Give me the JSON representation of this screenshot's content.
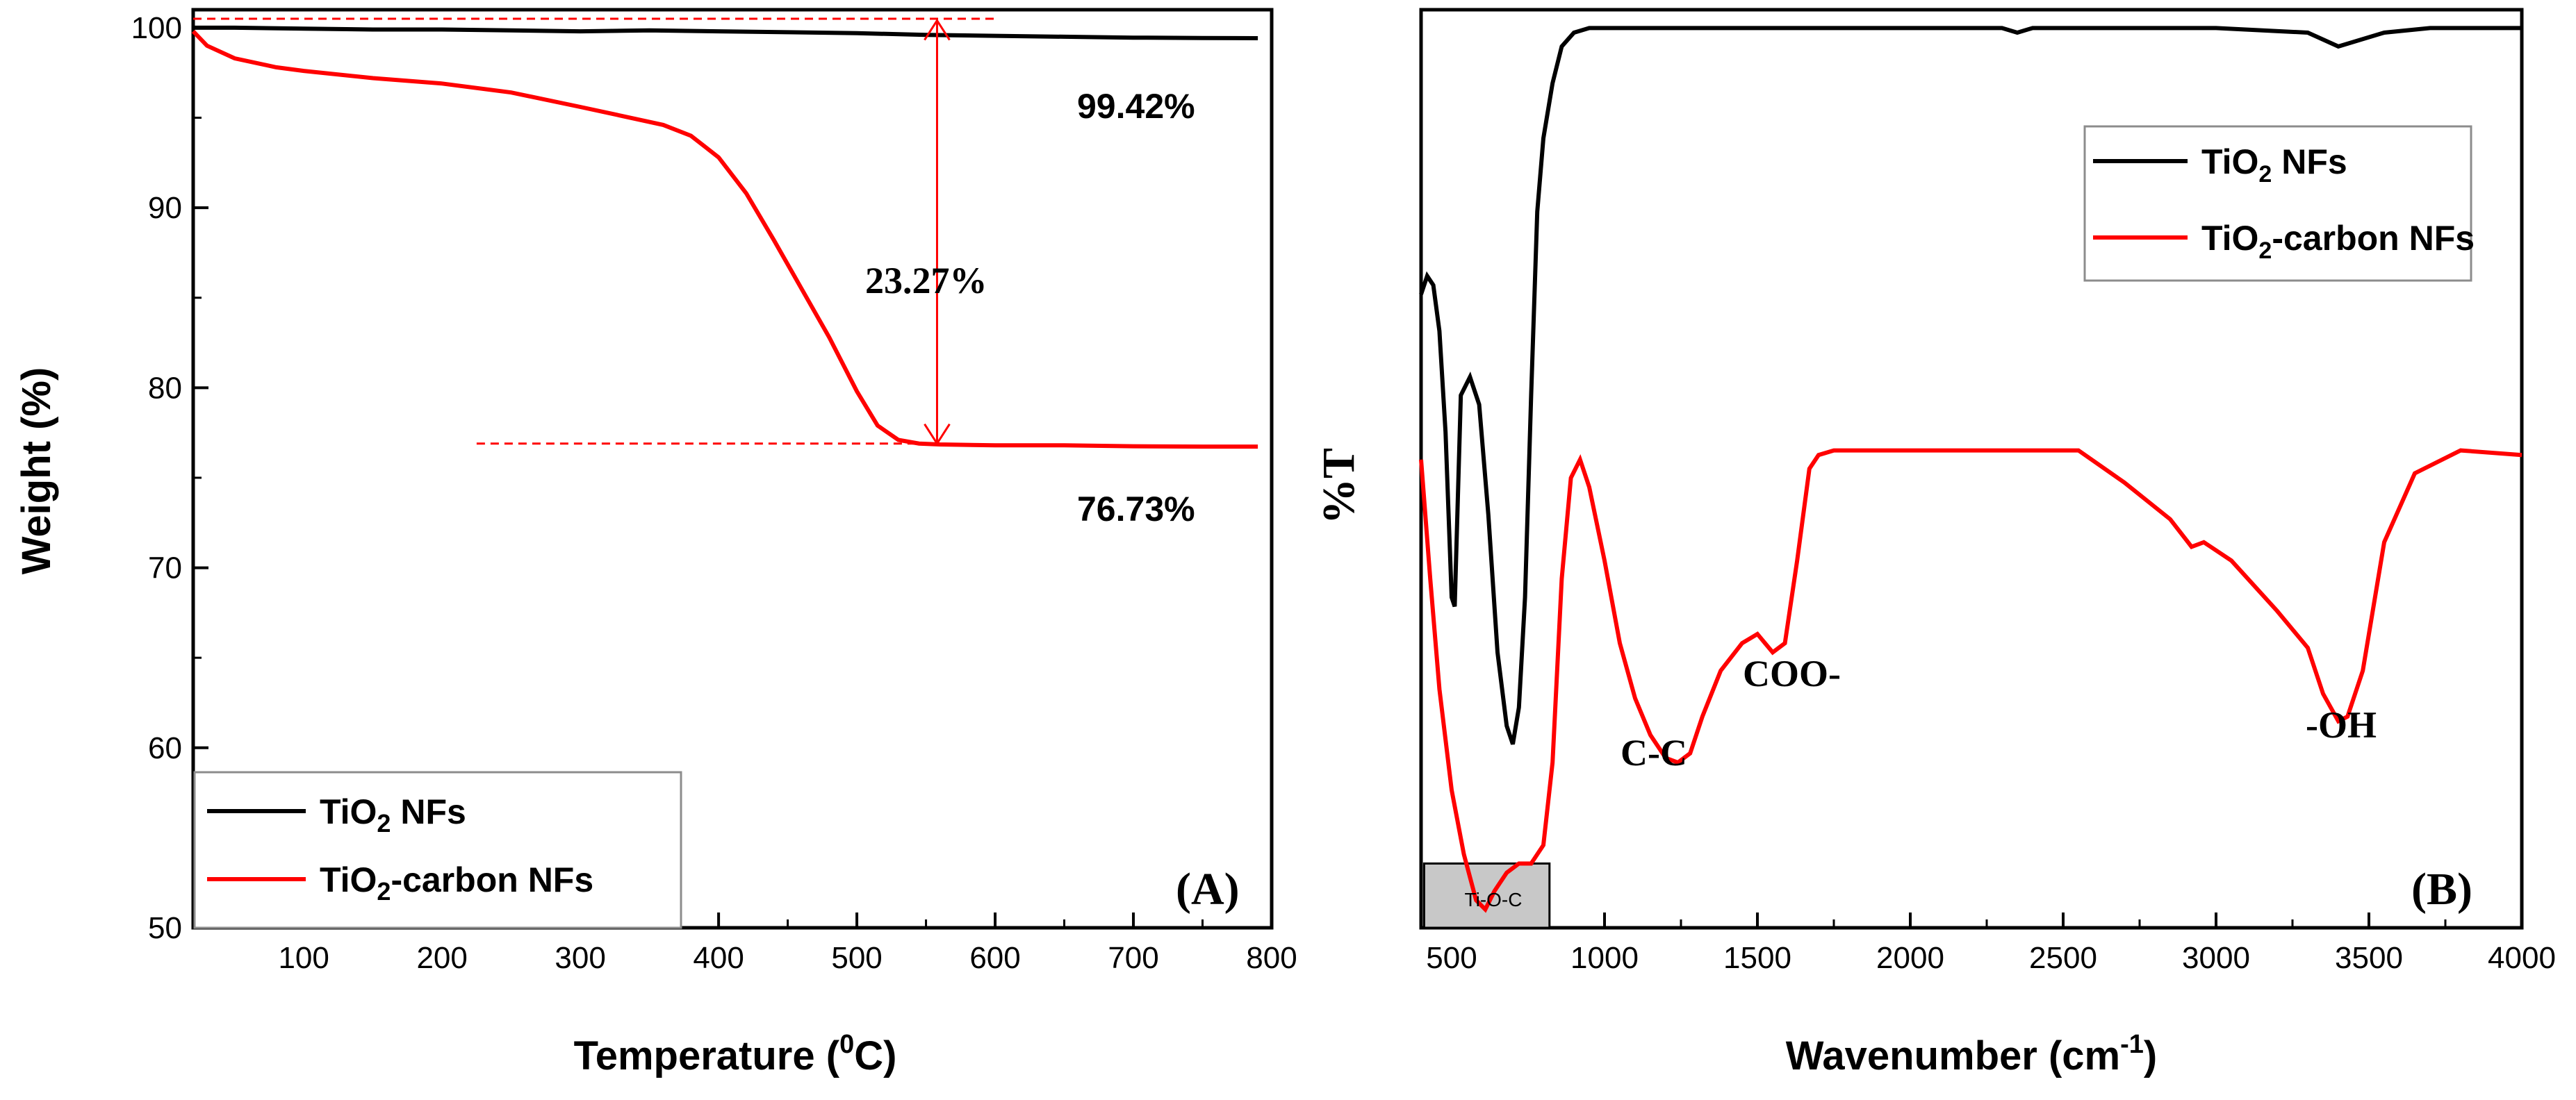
{
  "chart_data": [
    {
      "panel": "(A)",
      "type": "line",
      "xlabel_main": "Temperature (",
      "xlabel_sup": "0",
      "xlabel_end": "C)",
      "ylabel": "Weight (%)",
      "xlim": [
        20,
        800
      ],
      "ylim": [
        50,
        101
      ],
      "x_ticks": [
        100,
        200,
        300,
        400,
        500,
        600,
        700,
        800
      ],
      "y_ticks": [
        50,
        60,
        70,
        80,
        90,
        100
      ],
      "colors": {
        "tio2": "#000000",
        "carbon": "#ff0000"
      },
      "legend": [
        {
          "pre": "TiO",
          "sub": "2",
          "post": " NFs",
          "key": "tio2"
        },
        {
          "pre": "TiO",
          "sub": "2",
          "post": "-carbon NFs",
          "key": "carbon"
        }
      ],
      "series": [
        {
          "key": "tio2",
          "name": "TiO2 NFs",
          "x": [
            20,
            50,
            100,
            150,
            200,
            250,
            300,
            350,
            400,
            450,
            500,
            550,
            600,
            650,
            700,
            750,
            790
          ],
          "y": [
            100,
            100,
            99.95,
            99.9,
            99.9,
            99.85,
            99.8,
            99.85,
            99.8,
            99.75,
            99.7,
            99.6,
            99.55,
            99.5,
            99.45,
            99.43,
            99.42
          ]
        },
        {
          "key": "carbon",
          "name": "TiO2-carbon NFs",
          "x": [
            20,
            30,
            50,
            80,
            100,
            150,
            200,
            250,
            300,
            330,
            360,
            380,
            400,
            420,
            440,
            460,
            480,
            500,
            515,
            530,
            545,
            560,
            600,
            650,
            700,
            750,
            790
          ],
          "y": [
            99.8,
            99.0,
            98.3,
            97.8,
            97.6,
            97.2,
            96.9,
            96.4,
            95.6,
            95.1,
            94.6,
            94.0,
            92.8,
            90.8,
            88.2,
            85.5,
            82.8,
            79.8,
            77.9,
            77.1,
            76.9,
            76.85,
            76.8,
            76.8,
            76.75,
            76.73,
            76.73
          ]
        }
      ],
      "annotations": {
        "top_value": "99.42%",
        "bottom_value": "76.73%",
        "loss": "23.27%",
        "loss_x": 558,
        "loss_y_top": 100.4,
        "loss_y_bottom": 76.9,
        "ref_top": {
          "y": 100.5,
          "x_from": 20,
          "x_to": 600
        },
        "ref_bottom": {
          "y": 76.9,
          "x_from": 225,
          "x_to": 560
        }
      }
    },
    {
      "panel": "(B)",
      "type": "line",
      "xlabel_main": "Wavenumber (cm",
      "xlabel_sup": "-1",
      "xlabel_end": ")",
      "ylabel": "%T",
      "xlim": [
        400,
        4000
      ],
      "ylim": [
        0,
        100
      ],
      "x_ticks": [
        500,
        1000,
        1500,
        2000,
        2500,
        3000,
        3500,
        4000
      ],
      "legend": [
        {
          "pre": "TiO",
          "sub": "2",
          "post": " NFs",
          "key": "tio2"
        },
        {
          "pre": "TiO",
          "sub": "2",
          "post": "-carbon NFs",
          "key": "carbon"
        }
      ],
      "series": [
        {
          "key": "tio2",
          "name": "TiO2 NFs",
          "x": [
            400,
            420,
            440,
            460,
            480,
            500,
            510,
            530,
            560,
            590,
            620,
            650,
            680,
            700,
            720,
            740,
            760,
            780,
            800,
            830,
            860,
            900,
            950,
            1000,
            1200,
            1500,
            1800,
            2000,
            2300,
            2350,
            2400,
            2700,
            3000,
            3300,
            3400,
            3450,
            3550,
            3700,
            4000
          ],
          "y": [
            69,
            71,
            70,
            65,
            54,
            36,
            35,
            58,
            60,
            57,
            45,
            30,
            22,
            20,
            24,
            36,
            58,
            78,
            86,
            92,
            96,
            97.5,
            98,
            98,
            98,
            98,
            98,
            98,
            98,
            97.5,
            98,
            98,
            98,
            97.5,
            96,
            96.5,
            97.5,
            98,
            98
          ]
        },
        {
          "key": "carbon",
          "name": "TiO2-carbon NFs",
          "x": [
            400,
            430,
            460,
            500,
            540,
            580,
            610,
            640,
            680,
            720,
            760,
            800,
            830,
            860,
            890,
            920,
            950,
            1000,
            1050,
            1100,
            1150,
            1200,
            1240,
            1280,
            1320,
            1380,
            1450,
            1500,
            1550,
            1590,
            1630,
            1670,
            1700,
            1750,
            2000,
            2200,
            2400,
            2550,
            2700,
            2850,
            2920,
            2960,
            3050,
            3200,
            3300,
            3350,
            3400,
            3430,
            3480,
            3550,
            3650,
            3800,
            4000
          ],
          "y": [
            51,
            38,
            26,
            15,
            8,
            3,
            2,
            4,
            6,
            7,
            7,
            9,
            18,
            38,
            49,
            51,
            48,
            40,
            31,
            25,
            21,
            18.5,
            18,
            19,
            23,
            28,
            31,
            32,
            30,
            31,
            40,
            50,
            51.5,
            52,
            52,
            52,
            52,
            52,
            48.5,
            44.5,
            41.5,
            42,
            40,
            34.5,
            30.5,
            25.5,
            22.5,
            23,
            28,
            42,
            49.5,
            52,
            51.5
          ]
        }
      ],
      "annotations": {
        "c_c": "C-C",
        "coo": "COO-",
        "oh": "-OH",
        "tioc": "Ti-O-C",
        "box_x": [
          410,
          820
        ]
      }
    }
  ]
}
